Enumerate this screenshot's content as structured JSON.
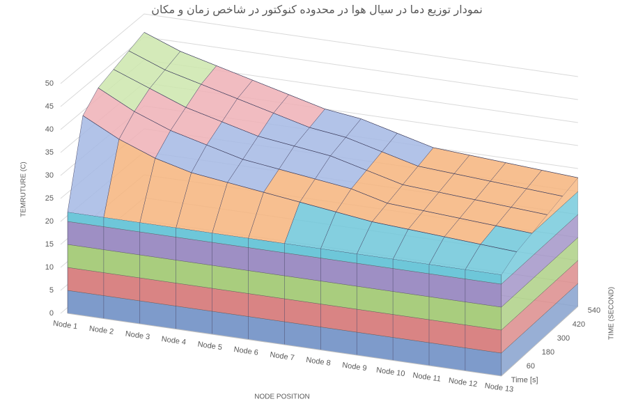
{
  "chart_data": {
    "type": "surface",
    "title": "نمودار توزیع دما در سیال هوا در محدوده کنوکتور در شاخص زمان و مکان",
    "y_label": "TEMRUTURE (C)",
    "x_label": "NODE POSITION",
    "z_label": "TIME (SECOND)",
    "categories": [
      "Node 1",
      "Node 2",
      "Node 3",
      "Node 4",
      "Node 5",
      "Node 6",
      "Node 7",
      "Node 8",
      "Node 9",
      "Node 10",
      "Node 11",
      "Node 12",
      "Node 13"
    ],
    "series": [
      {
        "name": "Time [s]",
        "values": [
          22,
          22,
          22,
          22,
          22,
          22,
          22,
          22,
          22,
          22,
          22,
          22,
          22
        ]
      },
      {
        "name": "60",
        "values": [
          40,
          36,
          33,
          31,
          30,
          29,
          28,
          27,
          26,
          25.5,
          25,
          24.5,
          24
        ]
      },
      {
        "name": "180",
        "values": [
          43,
          39,
          36,
          34,
          32,
          31,
          30,
          29,
          27,
          26.5,
          26,
          25.5,
          25
        ]
      },
      {
        "name": "300",
        "values": [
          44,
          41,
          38,
          36,
          34,
          33,
          32,
          30,
          28,
          27.5,
          27,
          26.5,
          26
        ]
      },
      {
        "name": "420",
        "values": [
          45,
          42,
          40,
          38,
          36,
          34,
          33,
          31,
          29,
          28.5,
          28,
          27.5,
          27
        ]
      },
      {
        "name": "540",
        "values": [
          46,
          43,
          41,
          39,
          37,
          35,
          34,
          32,
          30,
          29.5,
          29,
          28.5,
          28
        ]
      }
    ],
    "ylim": [
      0,
      50
    ],
    "yticks": [
      0,
      5,
      10,
      15,
      20,
      25,
      30,
      35,
      40,
      45,
      50
    ],
    "grid": true,
    "colors": [
      "#7e9bcb",
      "#d98484",
      "#a9cd7e",
      "#9e8fc4",
      "#6ec7d9",
      "#f6b47c",
      "#a4b9e4",
      "#eeb0b6",
      "#cde6ad",
      "#cdc3ec"
    ]
  }
}
